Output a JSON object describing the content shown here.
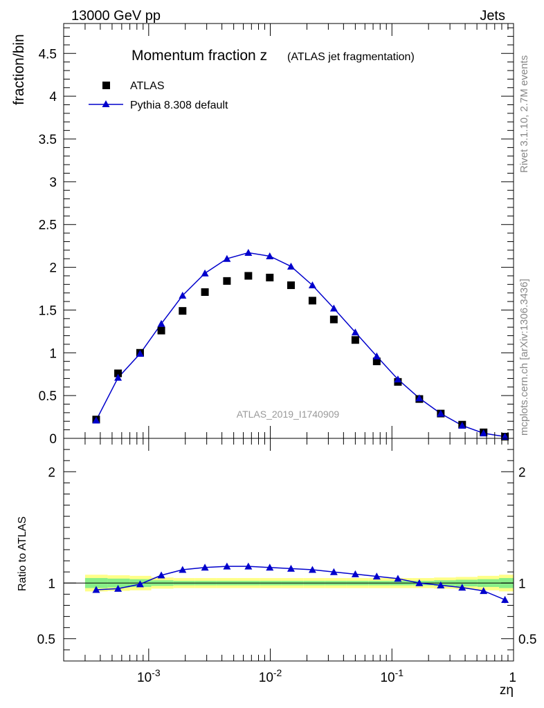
{
  "header": {
    "left": "13000 GeV pp",
    "right": "Jets"
  },
  "side_labels": {
    "rivet": "Rivet 3.1.10,  2.7M events",
    "mcplots": "mcplots.cern.ch [arXiv:1306.3436]"
  },
  "chart_data": {
    "type": "scatter",
    "title_main": "Momentum fraction z",
    "title_sub": "(ATLAS jet fragmentation)",
    "watermark": "ATLAS_2019_I1740909",
    "xlabel": "zη",
    "xscale": "log",
    "xlim": [
      0.0002,
      1
    ],
    "x_tick_labels": [
      "10^-3",
      "10^-2",
      "10^-1",
      "1"
    ],
    "top": {
      "ylabel": "fraction/bin",
      "ylim": [
        0,
        4.85
      ],
      "y_ticks": [
        0,
        0.5,
        1,
        1.5,
        2,
        2.5,
        3,
        3.5,
        4,
        4.5
      ],
      "y_tick_labels": [
        "0",
        "0.5",
        "1",
        "1.5",
        "2",
        "2.5",
        "3",
        "3.5",
        "4",
        "4.5"
      ]
    },
    "ratio": {
      "ylabel": "Ratio to ATLAS",
      "ylim": [
        0.3,
        2.3
      ],
      "y_ticks": [
        0.5,
        1,
        2
      ],
      "y_tick_labels": [
        "0.5",
        "1",
        "2"
      ]
    },
    "legend_position": "top-left",
    "bin_edges": [
      0.0003,
      0.00046,
      0.0007,
      0.00105,
      0.0016,
      0.0024,
      0.0036,
      0.0054,
      0.0082,
      0.0124,
      0.0188,
      0.028,
      0.042,
      0.064,
      0.097,
      0.147,
      0.222,
      0.335,
      0.505,
      0.76,
      1.0
    ],
    "series": [
      {
        "name": "ATLAS",
        "marker": "square",
        "color": "#000000",
        "x": [
          0.00037,
          0.00056,
          0.00085,
          0.00127,
          0.0019,
          0.0029,
          0.0044,
          0.0066,
          0.0099,
          0.0148,
          0.0222,
          0.0333,
          0.05,
          0.075,
          0.112,
          0.168,
          0.252,
          0.378,
          0.567,
          0.85
        ],
        "y": [
          0.22,
          0.76,
          1.0,
          1.26,
          1.49,
          1.71,
          1.84,
          1.9,
          1.88,
          1.79,
          1.61,
          1.39,
          1.15,
          0.9,
          0.66,
          0.46,
          0.29,
          0.16,
          0.07,
          0.02
        ]
      },
      {
        "name": "Pythia 8.308 default",
        "marker": "triangle",
        "color": "#0000cc",
        "x": [
          0.00037,
          0.00056,
          0.00085,
          0.00127,
          0.0019,
          0.0029,
          0.0044,
          0.0066,
          0.0099,
          0.0148,
          0.0222,
          0.0333,
          0.05,
          0.075,
          0.112,
          0.168,
          0.252,
          0.378,
          0.567,
          0.85
        ],
        "y": [
          0.21,
          0.71,
          0.99,
          1.34,
          1.67,
          1.93,
          2.1,
          2.17,
          2.13,
          2.01,
          1.79,
          1.52,
          1.24,
          0.96,
          0.69,
          0.47,
          0.29,
          0.15,
          0.06,
          0.02
        ],
        "ratio": [
          0.94,
          0.95,
          0.99,
          1.07,
          1.12,
          1.14,
          1.15,
          1.15,
          1.14,
          1.13,
          1.12,
          1.1,
          1.08,
          1.06,
          1.04,
          1.0,
          0.98,
          0.96,
          0.93,
          0.85
        ]
      }
    ],
    "ratio_bands": {
      "yellow_halfwidth": [
        0.075,
        0.07,
        0.065,
        0.05,
        0.045,
        0.045,
        0.045,
        0.045,
        0.045,
        0.045,
        0.045,
        0.045,
        0.045,
        0.045,
        0.045,
        0.045,
        0.05,
        0.055,
        0.065,
        0.075
      ],
      "green_halfwidth": [
        0.045,
        0.04,
        0.035,
        0.025,
        0.02,
        0.02,
        0.02,
        0.02,
        0.02,
        0.02,
        0.02,
        0.02,
        0.02,
        0.02,
        0.02,
        0.02,
        0.025,
        0.03,
        0.035,
        0.045
      ],
      "colors": {
        "yellow": "#ffff88",
        "green": "#88ee88"
      }
    }
  }
}
